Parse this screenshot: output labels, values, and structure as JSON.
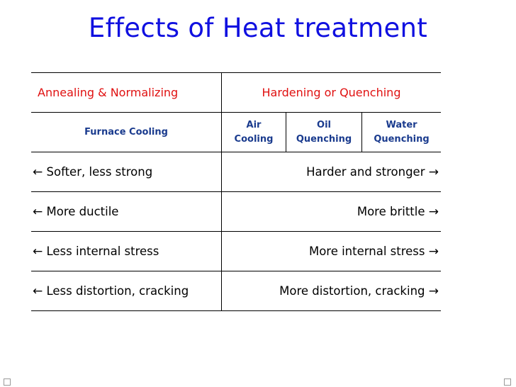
{
  "title": "Effects of Heat treatment",
  "header": {
    "left": "Annealing & Normalizing",
    "right": "Hardening or Quenching"
  },
  "subheader": {
    "furnace": "Furnace Cooling",
    "air": [
      "Air",
      "Cooling"
    ],
    "oil": [
      "Oil",
      "Quenching"
    ],
    "water": [
      "Water",
      "Quenching"
    ]
  },
  "arrows": {
    "left": "←",
    "right": "→"
  },
  "rows": [
    {
      "left": "Softer, less strong",
      "right": "Harder and stronger"
    },
    {
      "left": "More ductile",
      "right": "More brittle"
    },
    {
      "left": "Less internal stress",
      "right": "More internal stress"
    },
    {
      "left": "Less distortion, cracking",
      "right": "More distortion, cracking"
    }
  ],
  "colors": {
    "title": "#1010e0",
    "header": "#e01010",
    "subheader": "#1a3b8e"
  }
}
